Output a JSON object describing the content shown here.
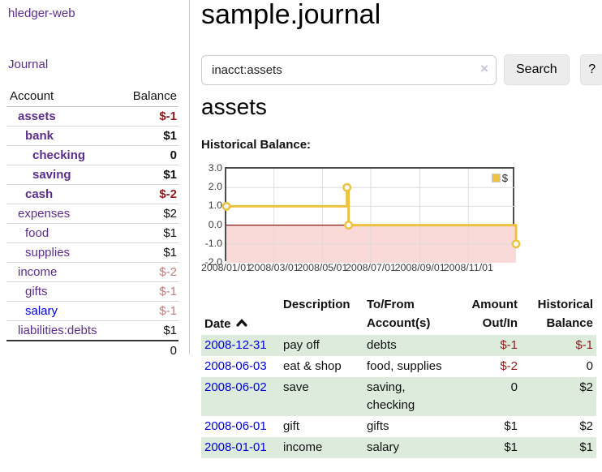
{
  "app": {
    "brand": "hledger-web",
    "nav_journal": "Journal"
  },
  "sidebar": {
    "header": {
      "account": "Account",
      "balance": "Balance"
    },
    "accounts": [
      {
        "name": "assets",
        "balance": "$-1",
        "level": 1,
        "bold": true,
        "name_color": "purple",
        "balance_tone": "neg-strong"
      },
      {
        "name": "bank",
        "balance": "$1",
        "level": 2,
        "bold": true,
        "name_color": "purple",
        "balance_tone": "normal"
      },
      {
        "name": "checking",
        "balance": "0",
        "level": 3,
        "bold": true,
        "name_color": "purple",
        "balance_tone": "normal"
      },
      {
        "name": "saving",
        "balance": "$1",
        "level": 3,
        "bold": true,
        "name_color": "purple",
        "balance_tone": "normal"
      },
      {
        "name": "cash",
        "balance": "$-2",
        "level": 2,
        "bold": true,
        "name_color": "purple",
        "balance_tone": "neg-strong"
      },
      {
        "name": "expenses",
        "balance": "$2",
        "level": 1,
        "bold": false,
        "name_color": "purple",
        "balance_tone": "normal"
      },
      {
        "name": "food",
        "balance": "$1",
        "level": 2,
        "bold": false,
        "name_color": "purple",
        "balance_tone": "normal"
      },
      {
        "name": "supplies",
        "balance": "$1",
        "level": 2,
        "bold": false,
        "name_color": "purple",
        "balance_tone": "normal"
      },
      {
        "name": "income",
        "balance": "$-2",
        "level": 1,
        "bold": false,
        "name_color": "purple",
        "balance_tone": "neg-muted"
      },
      {
        "name": "gifts",
        "balance": "$-1",
        "level": 2,
        "bold": false,
        "name_color": "purple",
        "balance_tone": "neg-muted"
      },
      {
        "name": "salary",
        "balance": "$-1",
        "level": 2,
        "bold": false,
        "name_color": "blue",
        "balance_tone": "neg-muted"
      },
      {
        "name": "liabilities:debts",
        "balance": "$1",
        "level": 1,
        "bold": false,
        "name_color": "purple",
        "balance_tone": "normal"
      }
    ],
    "total": "0"
  },
  "main": {
    "title": "sample.journal",
    "search": {
      "value": "inacct:assets",
      "clear_icon": "×",
      "button_label": "Search",
      "help_label": "?"
    },
    "account_heading": "assets",
    "chart_label": "Historical Balance:"
  },
  "chart_data": {
    "type": "line",
    "style": "step-after",
    "title": "Historical Balance",
    "series": [
      {
        "name": "$",
        "color": "#edc240",
        "points": [
          [
            "2008/01/01",
            1
          ],
          [
            "2008/06/01",
            2
          ],
          [
            "2008/06/03",
            0
          ],
          [
            "2008/12/31",
            -1
          ]
        ]
      }
    ],
    "x_ticks": [
      "2008/01/01",
      "2008/03/01",
      "2008/05/01",
      "2008/07/01",
      "2008/09/01",
      "2008/11/01"
    ],
    "y_ticks": [
      3,
      2,
      1,
      0,
      -1,
      -2
    ],
    "xlim": [
      "2008/01/01",
      "2008/12/31"
    ],
    "ylim": [
      -2,
      3
    ],
    "grid": true,
    "legend": {
      "label": "$",
      "position": "top-right"
    },
    "negative_region_color": "#fad9d9",
    "zero_line_color": "#8b1a1a",
    "grid_color": "#dcdcdc"
  },
  "register": {
    "headers": {
      "date": "Date",
      "description": "Description",
      "accounts": "To/From\nAccount(s)",
      "amount": "Amount\nOut/In",
      "balance": "Historical\nBalance"
    },
    "rows": [
      {
        "date": "2008-12-31",
        "description": "pay off",
        "accounts": "debts",
        "amount": "$-1",
        "amount_neg": true,
        "balance": "$-1",
        "balance_neg": true
      },
      {
        "date": "2008-06-03",
        "description": "eat & shop",
        "accounts": "food, supplies",
        "amount": "$-2",
        "amount_neg": true,
        "balance": "0",
        "balance_neg": false
      },
      {
        "date": "2008-06-02",
        "description": "save",
        "accounts": "saving,\nchecking",
        "amount": "0",
        "amount_neg": false,
        "balance": "$2",
        "balance_neg": false
      },
      {
        "date": "2008-06-01",
        "description": "gift",
        "accounts": "gifts",
        "amount": "$1",
        "amount_neg": false,
        "balance": "$2",
        "balance_neg": false
      },
      {
        "date": "2008-01-01",
        "description": "income",
        "accounts": "salary",
        "amount": "$1",
        "amount_neg": false,
        "balance": "$1",
        "balance_neg": false
      }
    ]
  }
}
